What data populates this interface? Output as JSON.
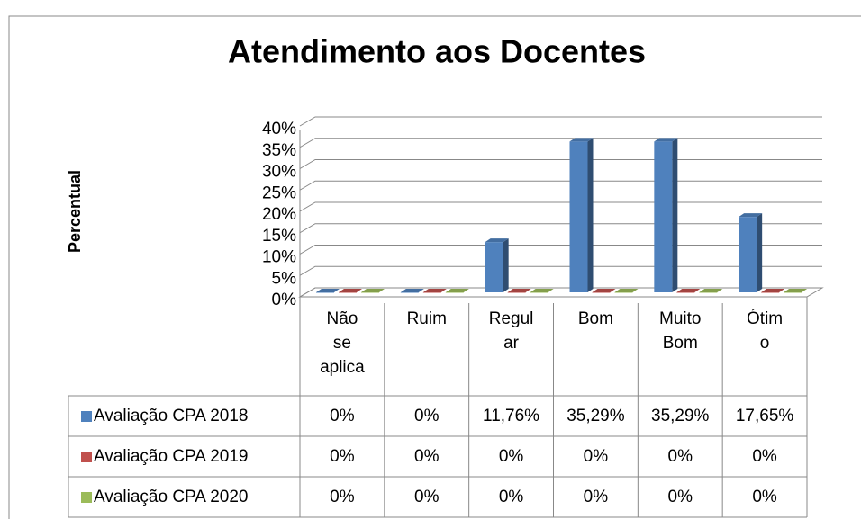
{
  "chart_data": {
    "type": "bar3d",
    "title": "Atendimento aos Docentes",
    "y_label": "Percentual",
    "categories": [
      "Não se aplica",
      "Ruim",
      "Regular",
      "Bom",
      "Muito Bom",
      "Ótimo"
    ],
    "series": [
      {
        "name": "Avaliação CPA 2018",
        "color": "#4f81bd",
        "values": [
          0,
          0,
          11.76,
          35.29,
          35.29,
          17.65
        ],
        "value_labels": [
          "0%",
          "0%",
          "11,76%",
          "35,29%",
          "35,29%",
          "17,65%"
        ]
      },
      {
        "name": "Avaliação CPA 2019",
        "color": "#c0504d",
        "values": [
          0,
          0,
          0,
          0,
          0,
          0
        ],
        "value_labels": [
          "0%",
          "0%",
          "0%",
          "0%",
          "0%",
          "0%"
        ]
      },
      {
        "name": "Avaliação CPA 2020",
        "color": "#9bbb59",
        "values": [
          0,
          0,
          0,
          0,
          0,
          0
        ],
        "value_labels": [
          "0%",
          "0%",
          "0%",
          "0%",
          "0%",
          "0%"
        ]
      }
    ],
    "ylim": [
      0,
      40
    ],
    "yticks": [
      {
        "value": 0,
        "label": "0%"
      },
      {
        "value": 5,
        "label": "5%"
      },
      {
        "value": 10,
        "label": "10%"
      },
      {
        "value": 15,
        "label": "15%"
      },
      {
        "value": 20,
        "label": "20%"
      },
      {
        "value": 25,
        "label": "25%"
      },
      {
        "value": 30,
        "label": "30%"
      },
      {
        "value": 35,
        "label": "35%"
      },
      {
        "value": 40,
        "label": "40%"
      }
    ],
    "grid": true
  }
}
